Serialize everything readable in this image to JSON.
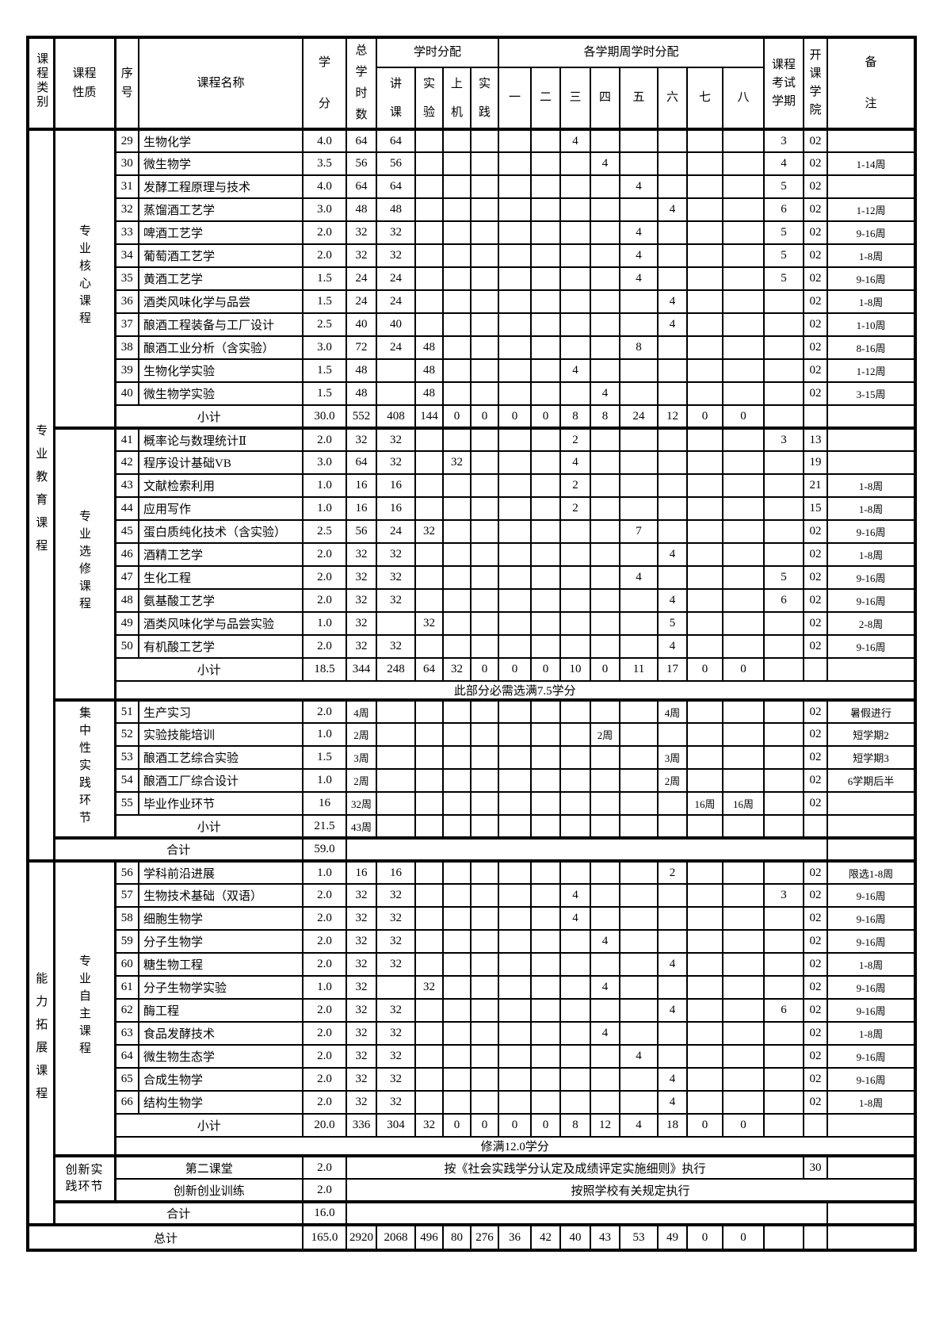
{
  "header": {
    "category": "课程类别",
    "nature": "课程\n性质",
    "no": "序\n号",
    "name": "课程名称",
    "credit": "学\n分",
    "total": "总\n学\n时\n数",
    "hour_group": "学时分配",
    "sem_group": "各学期周学时分配",
    "hours": [
      "讲\n课",
      "实\n验",
      "上\n机",
      "实\n践"
    ],
    "sems": [
      "一",
      "二",
      "三",
      "四",
      "五",
      "六",
      "七",
      "八"
    ],
    "exam": "课程\n考试\n学期",
    "college": "开\n课\n学\n院",
    "remark": "备\n注"
  },
  "rows": [
    {
      "t": "c",
      "cls": "cr",
      "cat": {
        "label": "专业教育课程",
        "span": 32
      },
      "nat": {
        "label": "专业核心课程",
        "span": 13
      },
      "no": "29",
      "name": "生物化学",
      "cr": "4.0",
      "tt": "64",
      "h": [
        "64",
        "",
        "",
        ""
      ],
      "s": [
        "",
        "",
        "4",
        "",
        "",
        "",
        "",
        ""
      ],
      "ex": "3",
      "co": "02",
      "rm": ""
    },
    {
      "t": "c",
      "cls": "cr",
      "no": "30",
      "name": "微生物学",
      "cr": "3.5",
      "tt": "56",
      "h": [
        "56",
        "",
        "",
        ""
      ],
      "s": [
        "",
        "",
        "",
        "4",
        "",
        "",
        "",
        ""
      ],
      "ex": "4",
      "co": "02",
      "rm": "1-14周"
    },
    {
      "t": "c",
      "cls": "cr",
      "no": "31",
      "name": "发酵工程原理与技术",
      "cr": "4.0",
      "tt": "64",
      "h": [
        "64",
        "",
        "",
        ""
      ],
      "s": [
        "",
        "",
        "",
        "",
        "4",
        "",
        "",
        ""
      ],
      "ex": "5",
      "co": "02",
      "rm": ""
    },
    {
      "t": "c",
      "cls": "cr",
      "no": "32",
      "name": "蒸馏酒工艺学",
      "cr": "3.0",
      "tt": "48",
      "h": [
        "48",
        "",
        "",
        ""
      ],
      "s": [
        "",
        "",
        "",
        "",
        "",
        "4",
        "",
        ""
      ],
      "ex": "6",
      "co": "02",
      "rm": "1-12周"
    },
    {
      "t": "c",
      "cls": "cr",
      "no": "33",
      "name": "啤酒工艺学",
      "cr": "2.0",
      "tt": "32",
      "h": [
        "32",
        "",
        "",
        ""
      ],
      "s": [
        "",
        "",
        "",
        "",
        "4",
        "",
        "",
        ""
      ],
      "ex": "5",
      "co": "02",
      "rm": "9-16周"
    },
    {
      "t": "c",
      "cls": "cr",
      "no": "34",
      "name": "葡萄酒工艺学",
      "cr": "2.0",
      "tt": "32",
      "h": [
        "32",
        "",
        "",
        ""
      ],
      "s": [
        "",
        "",
        "",
        "",
        "4",
        "",
        "",
        ""
      ],
      "ex": "5",
      "co": "02",
      "rm": "1-8周"
    },
    {
      "t": "c",
      "cls": "cr",
      "no": "35",
      "name": "黄酒工艺学",
      "cr": "1.5",
      "tt": "24",
      "h": [
        "24",
        "",
        "",
        ""
      ],
      "s": [
        "",
        "",
        "",
        "",
        "4",
        "",
        "",
        ""
      ],
      "ex": "5",
      "co": "02",
      "rm": "9-16周"
    },
    {
      "t": "c",
      "cls": "cr",
      "no": "36",
      "name": "酒类风味化学与品尝",
      "cr": "1.5",
      "tt": "24",
      "h": [
        "24",
        "",
        "",
        ""
      ],
      "s": [
        "",
        "",
        "",
        "",
        "",
        "4",
        "",
        ""
      ],
      "ex": "",
      "co": "02",
      "rm": "1-8周"
    },
    {
      "t": "c",
      "cls": "cr",
      "no": "37",
      "name": "酿酒工程装备与工厂设计",
      "cr": "2.5",
      "tt": "40",
      "h": [
        "40",
        "",
        "",
        ""
      ],
      "s": [
        "",
        "",
        "",
        "",
        "",
        "4",
        "",
        ""
      ],
      "ex": "",
      "co": "02",
      "rm": "1-10周"
    },
    {
      "t": "c",
      "cls": "cr",
      "no": "38",
      "name": "酿酒工业分析（含实验）",
      "cr": "3.0",
      "tt": "72",
      "h": [
        "24",
        "48",
        "",
        ""
      ],
      "s": [
        "",
        "",
        "",
        "",
        "8",
        "",
        "",
        ""
      ],
      "ex": "",
      "co": "02",
      "rm": "8-16周"
    },
    {
      "t": "c",
      "cls": "cr",
      "no": "39",
      "name": "生物化学实验",
      "cr": "1.5",
      "tt": "48",
      "h": [
        "",
        "48",
        "",
        ""
      ],
      "s": [
        "",
        "",
        "4",
        "",
        "",
        "",
        "",
        ""
      ],
      "ex": "",
      "co": "02",
      "rm": "1-12周"
    },
    {
      "t": "c",
      "cls": "cr",
      "no": "40",
      "name": "微生物学实验",
      "cr": "1.5",
      "tt": "48",
      "h": [
        "",
        "48",
        "",
        ""
      ],
      "s": [
        "",
        "",
        "",
        "4",
        "",
        "",
        "",
        ""
      ],
      "ex": "",
      "co": "02",
      "rm": "3-15周"
    },
    {
      "t": "st",
      "cls": "cr tb",
      "label": "小计",
      "cr": "30.0",
      "tt": "552",
      "h": [
        "408",
        "144",
        "0",
        "0"
      ],
      "s": [
        "0",
        "0",
        "8",
        "8",
        "24",
        "12",
        "0",
        "0"
      ],
      "ex": "",
      "co": "",
      "rm": ""
    },
    {
      "t": "c",
      "cls": "cr",
      "nat": {
        "label": "专业选修课程",
        "span": 12
      },
      "no": "41",
      "name": "概率论与数理统计Ⅱ",
      "cr": "2.0",
      "tt": "32",
      "h": [
        "32",
        "",
        "",
        ""
      ],
      "s": [
        "",
        "",
        "2",
        "",
        "",
        "",
        "",
        ""
      ],
      "ex": "3",
      "co": "13",
      "rm": ""
    },
    {
      "t": "c",
      "cls": "cr",
      "no": "42",
      "name": "程序设计基础VB",
      "cr": "3.0",
      "tt": "64",
      "h": [
        "32",
        "",
        "32",
        ""
      ],
      "s": [
        "",
        "",
        "4",
        "",
        "",
        "",
        "",
        ""
      ],
      "ex": "",
      "co": "19",
      "rm": ""
    },
    {
      "t": "c",
      "cls": "cr",
      "no": "43",
      "name": "文献检索利用",
      "cr": "1.0",
      "tt": "16",
      "h": [
        "16",
        "",
        "",
        ""
      ],
      "s": [
        "",
        "",
        "2",
        "",
        "",
        "",
        "",
        ""
      ],
      "ex": "",
      "co": "21",
      "rm": "1-8周"
    },
    {
      "t": "c",
      "cls": "cr",
      "no": "44",
      "name": "应用写作",
      "cr": "1.0",
      "tt": "16",
      "h": [
        "16",
        "",
        "",
        ""
      ],
      "s": [
        "",
        "",
        "2",
        "",
        "",
        "",
        "",
        ""
      ],
      "ex": "",
      "co": "15",
      "rm": "1-8周"
    },
    {
      "t": "c",
      "cls": "cr",
      "no": "45",
      "name": "蛋白质纯化技术（含实验）",
      "cr": "2.5",
      "tt": "56",
      "h": [
        "24",
        "32",
        "",
        ""
      ],
      "s": [
        "",
        "",
        "",
        "",
        "7",
        "",
        "",
        ""
      ],
      "ex": "",
      "co": "02",
      "rm": "9-16周"
    },
    {
      "t": "c",
      "cls": "cr",
      "no": "46",
      "name": "酒精工艺学",
      "cr": "2.0",
      "tt": "32",
      "h": [
        "32",
        "",
        "",
        ""
      ],
      "s": [
        "",
        "",
        "",
        "",
        "",
        "4",
        "",
        ""
      ],
      "ex": "",
      "co": "02",
      "rm": "1-8周"
    },
    {
      "t": "c",
      "cls": "cr",
      "no": "47",
      "name": "生化工程",
      "cr": "2.0",
      "tt": "32",
      "h": [
        "32",
        "",
        "",
        ""
      ],
      "s": [
        "",
        "",
        "",
        "",
        "4",
        "",
        "",
        ""
      ],
      "ex": "5",
      "co": "02",
      "rm": "9-16周"
    },
    {
      "t": "c",
      "cls": "cr",
      "no": "48",
      "name": "氨基酸工艺学",
      "cr": "2.0",
      "tt": "32",
      "h": [
        "32",
        "",
        "",
        ""
      ],
      "s": [
        "",
        "",
        "",
        "",
        "",
        "4",
        "",
        ""
      ],
      "ex": "6",
      "co": "02",
      "rm": "9-16周"
    },
    {
      "t": "c",
      "cls": "cr",
      "no": "49",
      "name": "酒类风味化学与品尝实验",
      "cr": "1.0",
      "tt": "32",
      "h": [
        "",
        "32",
        "",
        ""
      ],
      "s": [
        "",
        "",
        "",
        "",
        "",
        "5",
        "",
        ""
      ],
      "ex": "",
      "co": "02",
      "rm": "2-8周"
    },
    {
      "t": "c",
      "cls": "cr",
      "no": "50",
      "name": "有机酸工艺学",
      "cr": "2.0",
      "tt": "32",
      "h": [
        "32",
        "",
        "",
        ""
      ],
      "s": [
        "",
        "",
        "",
        "",
        "",
        "4",
        "",
        ""
      ],
      "ex": "",
      "co": "02",
      "rm": "9-16周"
    },
    {
      "t": "st",
      "cls": "cr",
      "label": "小计",
      "cr": "18.5",
      "tt": "344",
      "h": [
        "248",
        "64",
        "32",
        "0"
      ],
      "s": [
        "0",
        "0",
        "10",
        "0",
        "11",
        "17",
        "0",
        "0"
      ],
      "ex": "",
      "co": "",
      "rm": ""
    },
    {
      "t": "note",
      "cls": "nt tb",
      "text": "此部分必需选满7.5学分"
    },
    {
      "t": "c",
      "cls": "cr",
      "nat": {
        "label": "集中性实践环节",
        "span": 6
      },
      "no": "51",
      "name": "生产实习",
      "cr": "2.0",
      "tt": "4周",
      "h": [
        "",
        "",
        "",
        ""
      ],
      "s": [
        "",
        "",
        "",
        "",
        "",
        "4周",
        "",
        ""
      ],
      "ex": "",
      "co": "02",
      "rm": "暑假进行"
    },
    {
      "t": "c",
      "cls": "cr",
      "no": "52",
      "name": "实验技能培训",
      "cr": "1.0",
      "tt": "2周",
      "h": [
        "",
        "",
        "",
        ""
      ],
      "s": [
        "",
        "",
        "",
        "2周",
        "",
        "",
        "",
        ""
      ],
      "ex": "",
      "co": "02",
      "rm": "短学期2"
    },
    {
      "t": "c",
      "cls": "cr",
      "no": "53",
      "name": "酿酒工艺综合实验",
      "cr": "1.5",
      "tt": "3周",
      "h": [
        "",
        "",
        "",
        ""
      ],
      "s": [
        "",
        "",
        "",
        "",
        "",
        "3周",
        "",
        ""
      ],
      "ex": "",
      "co": "02",
      "rm": "短学期3"
    },
    {
      "t": "c",
      "cls": "cr",
      "no": "54",
      "name": "酿酒工厂综合设计",
      "cr": "1.0",
      "tt": "2周",
      "h": [
        "",
        "",
        "",
        ""
      ],
      "s": [
        "",
        "",
        "",
        "",
        "",
        "2周",
        "",
        ""
      ],
      "ex": "",
      "co": "02",
      "rm": "6学期后半"
    },
    {
      "t": "c",
      "cls": "cr",
      "no": "55",
      "name": "毕业作业环节",
      "cr": "16",
      "tt": "32周",
      "h": [
        "",
        "",
        "",
        ""
      ],
      "s": [
        "",
        "",
        "",
        "",
        "",
        "",
        "16周",
        "16周"
      ],
      "ex": "",
      "co": "02",
      "rm": ""
    },
    {
      "t": "st",
      "cls": "cr tb",
      "label": "小计",
      "cr": "21.5",
      "tt": "43周",
      "h": [
        "",
        "",
        "",
        ""
      ],
      "s": [
        "",
        "",
        "",
        "",
        "",
        "",
        "",
        ""
      ],
      "ex": "",
      "co": "",
      "rm": ""
    },
    {
      "t": "tot",
      "cls": "cr tb",
      "label": "合计",
      "cr": "59.0",
      "rm": ""
    },
    {
      "t": "c",
      "cls": "cr",
      "cat": {
        "label": "能力拓展课程",
        "span": 16
      },
      "nat": {
        "label": "专业自主课程",
        "span": 13
      },
      "no": "56",
      "name": "学科前沿进展",
      "cr": "1.0",
      "tt": "16",
      "h": [
        "16",
        "",
        "",
        ""
      ],
      "s": [
        "",
        "",
        "",
        "",
        "",
        "2",
        "",
        ""
      ],
      "ex": "",
      "co": "02",
      "rm": "限选1-8周"
    },
    {
      "t": "c",
      "cls": "cr",
      "no": "57",
      "name": "生物技术基础（双语）",
      "cr": "2.0",
      "tt": "32",
      "h": [
        "32",
        "",
        "",
        ""
      ],
      "s": [
        "",
        "",
        "4",
        "",
        "",
        "",
        "",
        ""
      ],
      "ex": "3",
      "co": "02",
      "rm": "9-16周"
    },
    {
      "t": "c",
      "cls": "cr",
      "no": "58",
      "name": "细胞生物学",
      "cr": "2.0",
      "tt": "32",
      "h": [
        "32",
        "",
        "",
        ""
      ],
      "s": [
        "",
        "",
        "4",
        "",
        "",
        "",
        "",
        ""
      ],
      "ex": "",
      "co": "02",
      "rm": "9-16周"
    },
    {
      "t": "c",
      "cls": "cr",
      "no": "59",
      "name": "分子生物学",
      "cr": "2.0",
      "tt": "32",
      "h": [
        "32",
        "",
        "",
        ""
      ],
      "s": [
        "",
        "",
        "",
        "4",
        "",
        "",
        "",
        ""
      ],
      "ex": "",
      "co": "02",
      "rm": "9-16周"
    },
    {
      "t": "c",
      "cls": "cr",
      "no": "60",
      "name": "糖生物工程",
      "cr": "2.0",
      "tt": "32",
      "h": [
        "32",
        "",
        "",
        ""
      ],
      "s": [
        "",
        "",
        "",
        "",
        "",
        "4",
        "",
        ""
      ],
      "ex": "",
      "co": "02",
      "rm": "1-8周"
    },
    {
      "t": "c",
      "cls": "cr",
      "no": "61",
      "name": "分子生物学实验",
      "cr": "1.0",
      "tt": "32",
      "h": [
        "",
        "32",
        "",
        ""
      ],
      "s": [
        "",
        "",
        "",
        "4",
        "",
        "",
        "",
        ""
      ],
      "ex": "",
      "co": "02",
      "rm": "9-16周"
    },
    {
      "t": "c",
      "cls": "cr",
      "no": "62",
      "name": "酶工程",
      "cr": "2.0",
      "tt": "32",
      "h": [
        "32",
        "",
        "",
        ""
      ],
      "s": [
        "",
        "",
        "",
        "",
        "",
        "4",
        "",
        ""
      ],
      "ex": "6",
      "co": "02",
      "rm": "9-16周"
    },
    {
      "t": "c",
      "cls": "cr",
      "no": "63",
      "name": "食品发酵技术",
      "cr": "2.0",
      "tt": "32",
      "h": [
        "32",
        "",
        "",
        ""
      ],
      "s": [
        "",
        "",
        "",
        "4",
        "",
        "",
        "",
        ""
      ],
      "ex": "",
      "co": "02",
      "rm": "1-8周"
    },
    {
      "t": "c",
      "cls": "cr",
      "no": "64",
      "name": "微生物生态学",
      "cr": "2.0",
      "tt": "32",
      "h": [
        "32",
        "",
        "",
        ""
      ],
      "s": [
        "",
        "",
        "",
        "",
        "4",
        "",
        "",
        ""
      ],
      "ex": "",
      "co": "02",
      "rm": "9-16周"
    },
    {
      "t": "c",
      "cls": "cr",
      "no": "65",
      "name": "合成生物学",
      "cr": "2.0",
      "tt": "32",
      "h": [
        "32",
        "",
        "",
        ""
      ],
      "s": [
        "",
        "",
        "",
        "",
        "",
        "4",
        "",
        ""
      ],
      "ex": "",
      "co": "02",
      "rm": "9-16周"
    },
    {
      "t": "c",
      "cls": "cr",
      "no": "66",
      "name": "结构生物学",
      "cr": "2.0",
      "tt": "32",
      "h": [
        "32",
        "",
        "",
        ""
      ],
      "s": [
        "",
        "",
        "",
        "",
        "",
        "4",
        "",
        ""
      ],
      "ex": "",
      "co": "02",
      "rm": "1-8周"
    },
    {
      "t": "st",
      "cls": "cr",
      "label": "小计",
      "cr": "20.0",
      "tt": "336",
      "h": [
        "304",
        "32",
        "0",
        "0"
      ],
      "s": [
        "0",
        "0",
        "8",
        "12",
        "4",
        "18",
        "0",
        "0"
      ],
      "ex": "",
      "co": "",
      "rm": ""
    },
    {
      "t": "note",
      "cls": "nt tb",
      "text": "修满12.0学分"
    },
    {
      "t": "sp1",
      "cls": "cr",
      "nat": {
        "label": "创新实践环节",
        "span": 2,
        "wrap": true
      },
      "label": "第二课堂",
      "cr": "2.0",
      "text": "按《社会实践学分认定及成绩评定实施细则》执行",
      "co": "30",
      "rm": ""
    },
    {
      "t": "sp2",
      "cls": "cr tb",
      "label": "创新创业训练",
      "cr": "2.0",
      "text": "按照学校有关规定执行"
    },
    {
      "t": "tot",
      "cls": "cr tb",
      "label": "合计",
      "cr": "16.0",
      "rm": ""
    },
    {
      "t": "g",
      "cls": "gd",
      "label": "总计",
      "cr": "165.0",
      "tt": "2920",
      "h": [
        "2068",
        "496",
        "80",
        "276"
      ],
      "s": [
        "36",
        "42",
        "40",
        "43",
        "53",
        "49",
        "0",
        "0"
      ],
      "ex": "",
      "co": "",
      "rm": ""
    }
  ]
}
